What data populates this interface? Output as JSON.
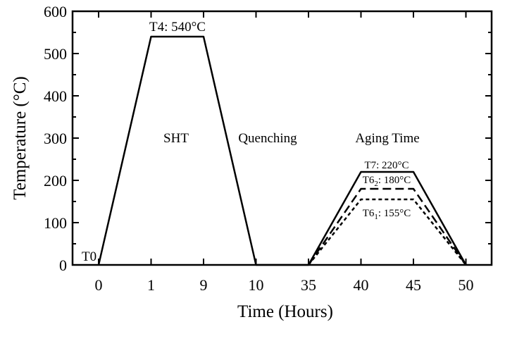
{
  "chart_data": {
    "type": "line",
    "xlabel": "Time (Hours)",
    "ylabel": "Temperature (°C)",
    "ylim": [
      0,
      600
    ],
    "yticks": [
      "0",
      "100",
      "200",
      "300",
      "400",
      "500",
      "600"
    ],
    "x_categories": [
      "0",
      "1",
      "9",
      "10",
      "35",
      "40",
      "45",
      "50"
    ],
    "grid": false,
    "series": [
      {
        "name": "T7",
        "style": "solid",
        "x": [
          "0",
          "1",
          "9",
          "10",
          "35",
          "40",
          "45",
          "50"
        ],
        "y": [
          0,
          540,
          540,
          0,
          0,
          220,
          220,
          0
        ]
      },
      {
        "name": "T62",
        "style": "dashed",
        "x": [
          "35",
          "40",
          "45",
          "50"
        ],
        "y": [
          0,
          180,
          180,
          0
        ]
      },
      {
        "name": "T61",
        "style": "dotted",
        "x": [
          "35",
          "40",
          "45",
          "50"
        ],
        "y": [
          0,
          155,
          155,
          0
        ]
      }
    ],
    "annotations": {
      "t0": "T0",
      "t4": "T4: 540°C",
      "sht": "SHT",
      "quenching": "Quenching",
      "aging": "Aging Time",
      "t7": "T7: 220°C",
      "t62_main": "T6",
      "t62_sub": "2",
      "t62_rest": ": 180°C",
      "t61_main": "T6",
      "t61_sub": "1",
      "t61_rest": ": 155°C"
    }
  }
}
